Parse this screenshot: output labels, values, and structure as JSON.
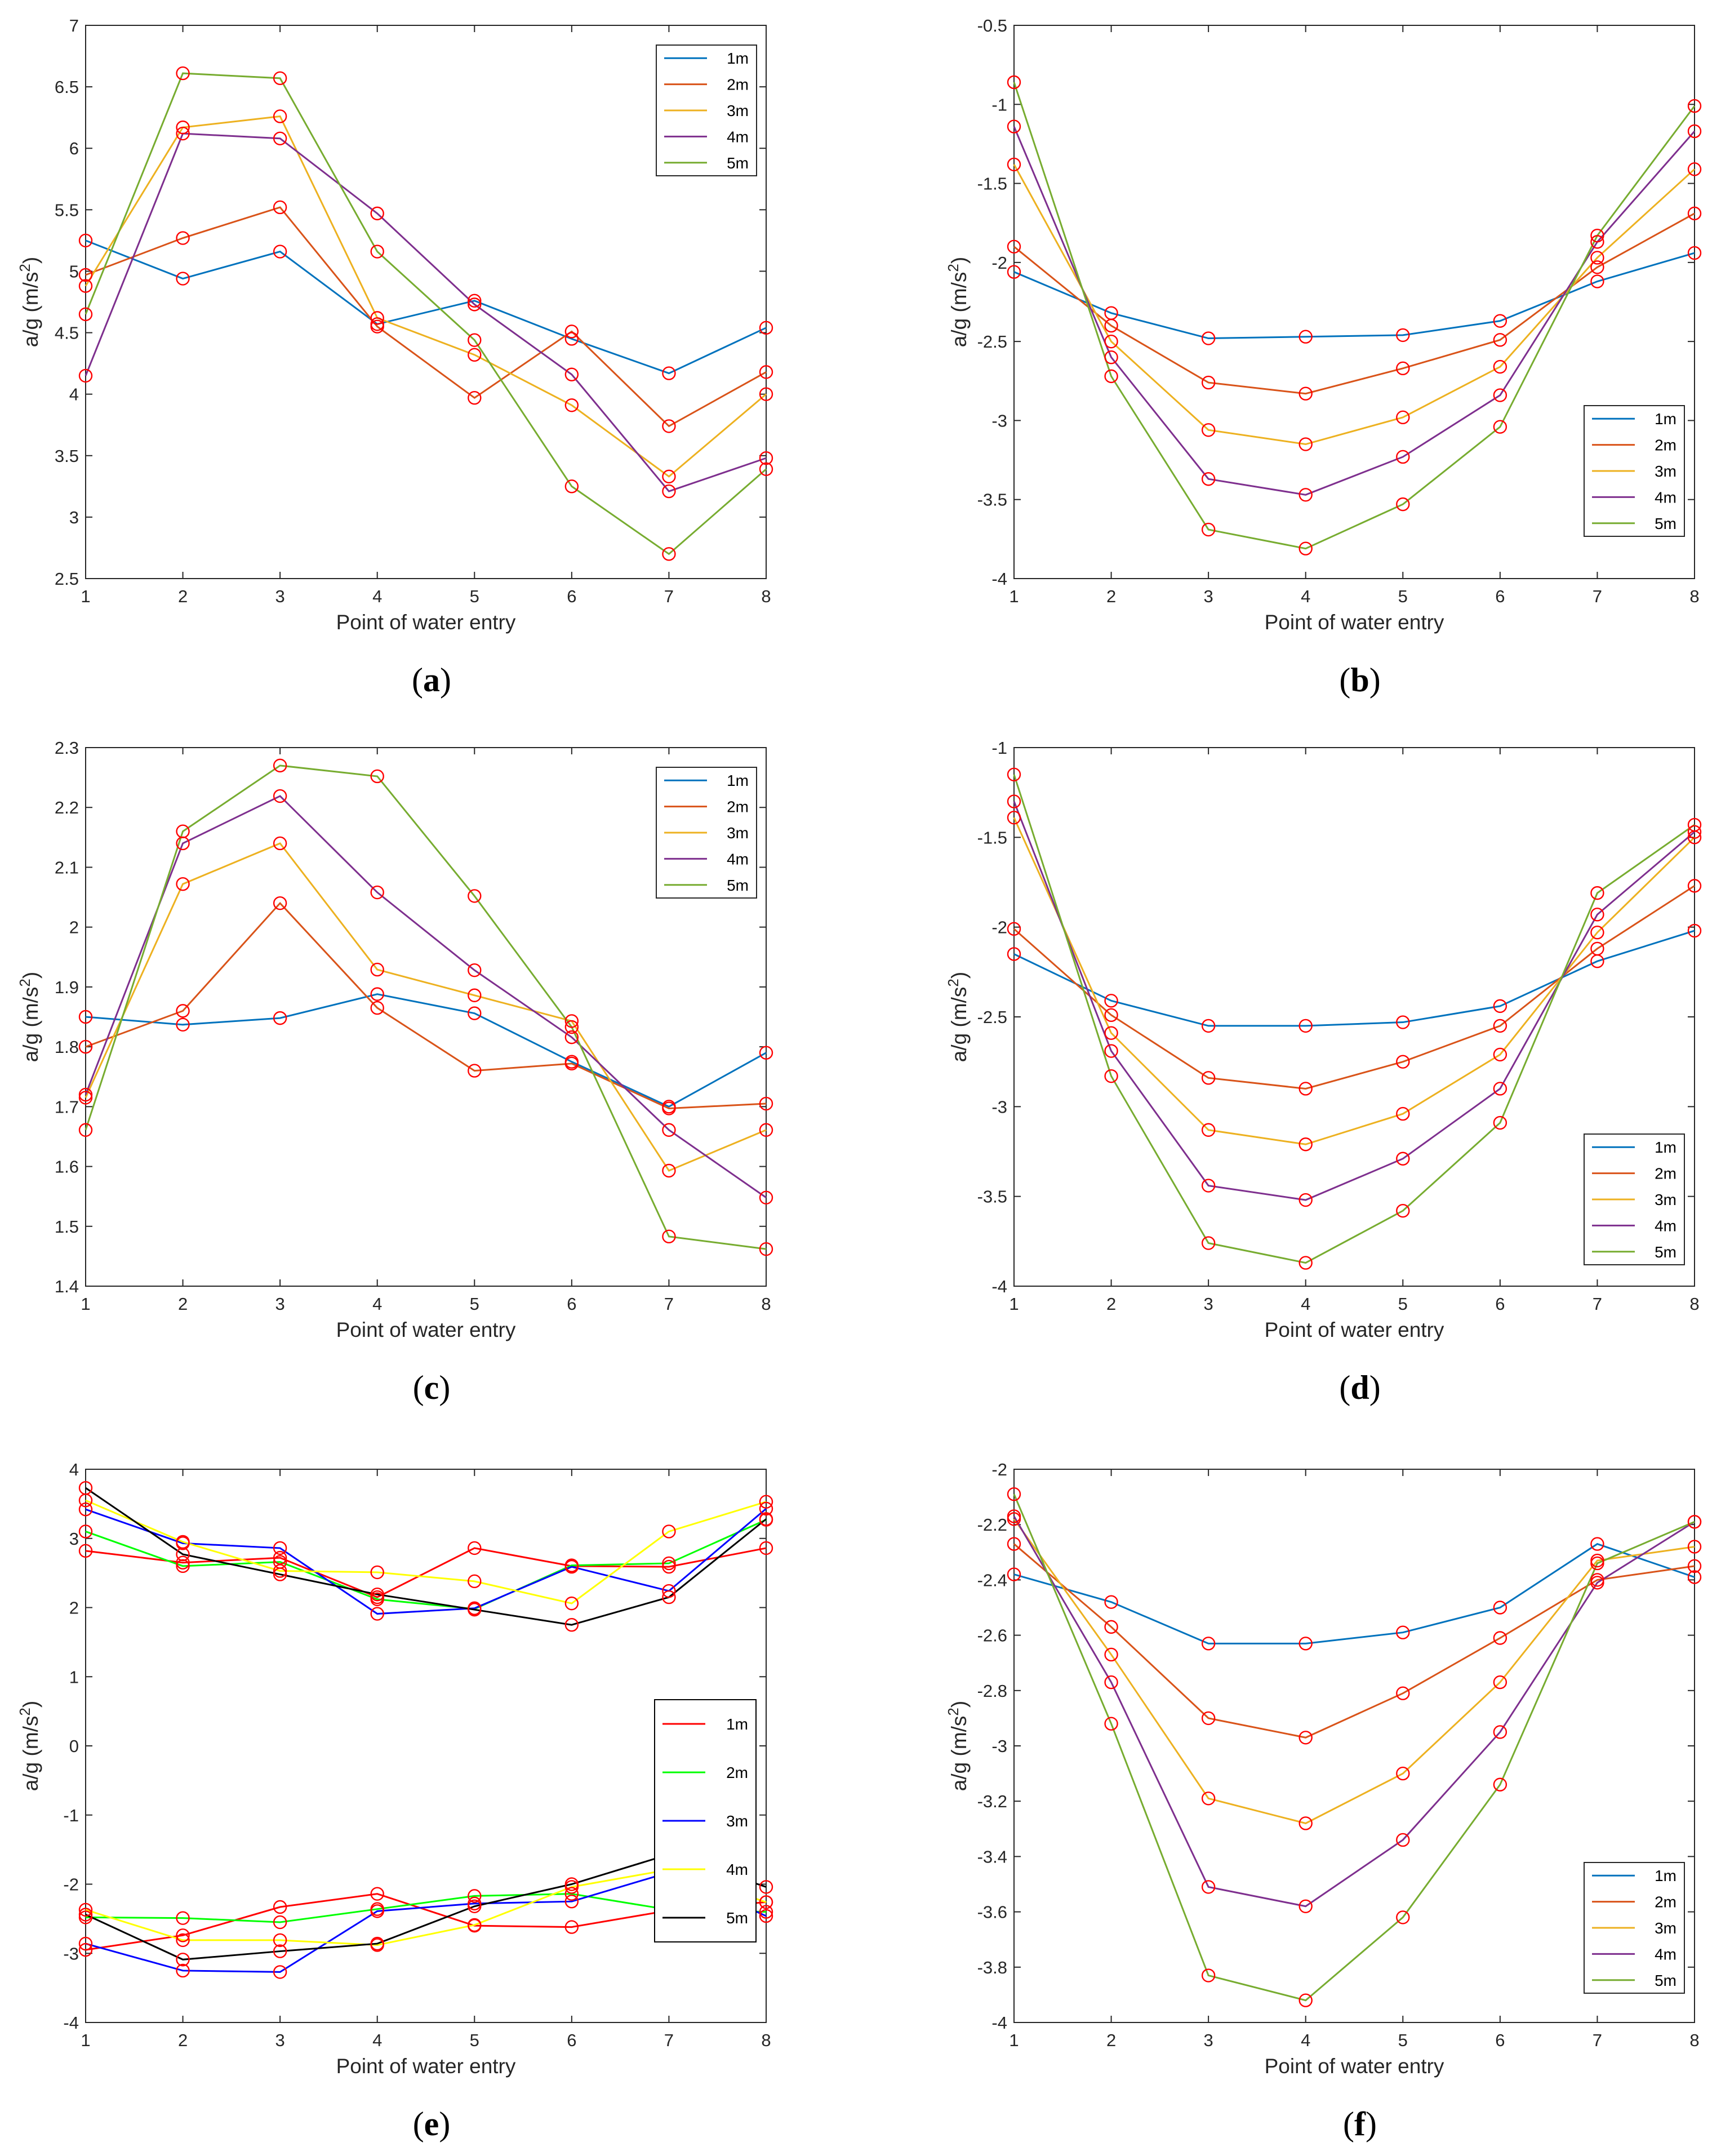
{
  "figure": {
    "panels": [
      "a",
      "b",
      "c",
      "d",
      "e",
      "f"
    ]
  },
  "chart_data": [
    {
      "id": "a",
      "type": "line",
      "caption_letter": "a",
      "xlabel": "Point of water entry",
      "ylabel_main": "a/g (m/s",
      "ylabel_sup": "2",
      "ylabel_close": ")",
      "x": [
        1,
        2,
        3,
        4,
        5,
        6,
        7,
        8
      ],
      "xlim": [
        1,
        8
      ],
      "ylim": [
        2.5,
        7
      ],
      "yticks": [
        2.5,
        3,
        3.5,
        4,
        4.5,
        5,
        5.5,
        6,
        6.5,
        7
      ],
      "legend_position": "top-right",
      "series": [
        {
          "name": "1m",
          "color": "#0072BD",
          "values": [
            5.25,
            4.94,
            5.16,
            4.57,
            4.76,
            4.45,
            4.17,
            4.54
          ]
        },
        {
          "name": "2m",
          "color": "#D95319",
          "values": [
            4.97,
            5.27,
            5.52,
            4.55,
            3.97,
            4.51,
            3.74,
            4.18
          ]
        },
        {
          "name": "3m",
          "color": "#EDB120",
          "values": [
            4.88,
            6.17,
            6.26,
            4.62,
            4.32,
            3.91,
            3.33,
            4.0
          ]
        },
        {
          "name": "4m",
          "color": "#7E2F8E",
          "values": [
            4.15,
            6.12,
            6.08,
            5.47,
            4.73,
            4.16,
            3.21,
            3.48
          ]
        },
        {
          "name": "5m",
          "color": "#77AC30",
          "values": [
            4.65,
            6.61,
            6.57,
            5.16,
            4.44,
            3.25,
            2.7,
            3.39
          ]
        }
      ]
    },
    {
      "id": "b",
      "type": "line",
      "caption_letter": "b",
      "xlabel": "Point of water entry",
      "ylabel_main": "a/g (m/s",
      "ylabel_sup": "2",
      "ylabel_close": ")",
      "x": [
        1,
        2,
        3,
        4,
        5,
        6,
        7,
        8
      ],
      "xlim": [
        1,
        8
      ],
      "ylim": [
        -4,
        -0.5
      ],
      "yticks": [
        -4,
        -3.5,
        -3,
        -2.5,
        -2,
        -1.5,
        -1,
        -0.5
      ],
      "legend_position": "bottom-right",
      "series": [
        {
          "name": "1m",
          "color": "#0072BD",
          "values": [
            -2.06,
            -2.32,
            -2.48,
            -2.47,
            -2.46,
            -2.37,
            -2.12,
            -1.94
          ]
        },
        {
          "name": "2m",
          "color": "#D95319",
          "values": [
            -1.9,
            -2.4,
            -2.76,
            -2.83,
            -2.67,
            -2.49,
            -2.03,
            -1.69
          ]
        },
        {
          "name": "3m",
          "color": "#EDB120",
          "values": [
            -1.38,
            -2.5,
            -3.06,
            -3.15,
            -2.98,
            -2.66,
            -1.97,
            -1.41
          ]
        },
        {
          "name": "4m",
          "color": "#7E2F8E",
          "values": [
            -1.14,
            -2.6,
            -3.37,
            -3.47,
            -3.23,
            -2.84,
            -1.87,
            -1.17
          ]
        },
        {
          "name": "5m",
          "color": "#77AC30",
          "values": [
            -0.86,
            -2.72,
            -3.69,
            -3.81,
            -3.53,
            -3.04,
            -1.83,
            -1.01
          ]
        }
      ]
    },
    {
      "id": "c",
      "type": "line",
      "caption_letter": "c",
      "xlabel": "Point of water entry",
      "ylabel_main": "a/g (m/s",
      "ylabel_sup": "2",
      "ylabel_close": ")",
      "x": [
        1,
        2,
        3,
        4,
        5,
        6,
        7,
        8
      ],
      "xlim": [
        1,
        8
      ],
      "ylim": [
        1.4,
        2.3
      ],
      "yticks": [
        1.4,
        1.5,
        1.6,
        1.7,
        1.8,
        1.9,
        2,
        2.1,
        2.2,
        2.3
      ],
      "legend_position": "top-right",
      "series": [
        {
          "name": "1m",
          "color": "#0072BD",
          "values": [
            1.85,
            1.837,
            1.848,
            1.888,
            1.856,
            1.775,
            1.7,
            1.79
          ]
        },
        {
          "name": "2m",
          "color": "#D95319",
          "values": [
            1.8,
            1.86,
            2.04,
            1.865,
            1.76,
            1.772,
            1.697,
            1.705
          ]
        },
        {
          "name": "3m",
          "color": "#EDB120",
          "values": [
            1.715,
            2.072,
            2.14,
            1.929,
            1.886,
            1.843,
            1.593,
            1.661
          ]
        },
        {
          "name": "4m",
          "color": "#7E2F8E",
          "values": [
            1.72,
            2.14,
            2.219,
            2.058,
            1.928,
            1.816,
            1.661,
            1.548
          ]
        },
        {
          "name": "5m",
          "color": "#77AC30",
          "values": [
            1.661,
            2.16,
            2.27,
            2.252,
            2.052,
            1.833,
            1.483,
            1.462
          ]
        }
      ]
    },
    {
      "id": "d",
      "type": "line",
      "caption_letter": "d",
      "xlabel": "Point of water entry",
      "ylabel_main": "a/g (m/s",
      "ylabel_sup": "2",
      "ylabel_close": ")",
      "x": [
        1,
        2,
        3,
        4,
        5,
        6,
        7,
        8
      ],
      "xlim": [
        1,
        8
      ],
      "ylim": [
        -4,
        -1
      ],
      "yticks": [
        -4,
        -3.5,
        -3,
        -2.5,
        -2,
        -1.5,
        -1
      ],
      "legend_position": "bottom-right",
      "series": [
        {
          "name": "1m",
          "color": "#0072BD",
          "values": [
            -2.15,
            -2.41,
            -2.55,
            -2.55,
            -2.53,
            -2.44,
            -2.19,
            -2.02
          ]
        },
        {
          "name": "2m",
          "color": "#D95319",
          "values": [
            -2.01,
            -2.49,
            -2.84,
            -2.9,
            -2.75,
            -2.55,
            -2.12,
            -1.77
          ]
        },
        {
          "name": "3m",
          "color": "#EDB120",
          "values": [
            -1.39,
            -2.59,
            -3.13,
            -3.21,
            -3.04,
            -2.71,
            -2.03,
            -1.5
          ]
        },
        {
          "name": "4m",
          "color": "#7E2F8E",
          "values": [
            -1.3,
            -2.69,
            -3.44,
            -3.52,
            -3.29,
            -2.9,
            -1.93,
            -1.47
          ]
        },
        {
          "name": "5m",
          "color": "#77AC30",
          "values": [
            -1.15,
            -2.83,
            -3.76,
            -3.87,
            -3.58,
            -3.09,
            -1.81,
            -1.43
          ]
        }
      ]
    },
    {
      "id": "e",
      "type": "line",
      "caption_letter": "e",
      "xlabel": "Point of water entry",
      "ylabel_main": "a/g (m/s",
      "ylabel_sup": "2",
      "ylabel_close": ")",
      "x": [
        1,
        2,
        3,
        4,
        5,
        6,
        7,
        8
      ],
      "xlim": [
        1,
        8
      ],
      "ylim": [
        -4,
        4
      ],
      "yticks": [
        -4,
        -3,
        -2,
        -1,
        0,
        1,
        2,
        3,
        4
      ],
      "legend_position": "middle-right",
      "legend_boxed_dark": true,
      "series": [
        {
          "name": "1m",
          "color": "#FF0000",
          "values": [
            2.82,
            2.65,
            2.72,
            2.15,
            2.86,
            2.6,
            2.59,
            2.86
          ],
          "lower": [
            -2.95,
            -2.74,
            -2.33,
            -2.14,
            -2.6,
            -2.62,
            -2.38,
            -2.26
          ]
        },
        {
          "name": "2m",
          "color": "#00FF00",
          "values": [
            3.1,
            2.6,
            2.66,
            2.12,
            1.98,
            2.61,
            2.64,
            3.27
          ],
          "lower": [
            -2.48,
            -2.49,
            -2.55,
            -2.36,
            -2.17,
            -2.14,
            -2.37,
            -2.4
          ]
        },
        {
          "name": "3m",
          "color": "#0000FF",
          "values": [
            3.42,
            2.93,
            2.86,
            1.91,
            1.99,
            2.59,
            2.24,
            3.43
          ],
          "lower": [
            -2.86,
            -3.25,
            -3.27,
            -2.39,
            -2.28,
            -2.25,
            -1.83,
            -2.46
          ]
        },
        {
          "name": "4m",
          "color": "#FFFF00",
          "values": [
            3.55,
            2.95,
            2.53,
            2.51,
            2.38,
            2.06,
            3.1,
            3.53
          ],
          "lower": [
            -2.37,
            -2.81,
            -2.81,
            -2.88,
            -2.59,
            -2.04,
            -1.79,
            -2.26
          ]
        },
        {
          "name": "5m",
          "color": "#000000",
          "values": [
            3.73,
            2.77,
            2.48,
            2.19,
            1.97,
            1.75,
            2.15,
            3.28
          ],
          "lower": [
            -2.44,
            -3.09,
            -2.97,
            -2.86,
            -2.32,
            -2.0,
            -1.57,
            -2.04
          ]
        }
      ]
    },
    {
      "id": "f",
      "type": "line",
      "caption_letter": "f",
      "xlabel": "Point of water entry",
      "ylabel_main": "a/g (m/s",
      "ylabel_sup": "2",
      "ylabel_close": ")",
      "x": [
        1,
        2,
        3,
        4,
        5,
        6,
        7,
        8
      ],
      "xlim": [
        1,
        8
      ],
      "ylim": [
        -4,
        -2
      ],
      "yticks": [
        -4,
        -3.8,
        -3.6,
        -3.4,
        -3.2,
        -3,
        -2.8,
        -2.6,
        -2.4,
        -2.2,
        -2
      ],
      "legend_position": "bottom-right",
      "series": [
        {
          "name": "1m",
          "color": "#0072BD",
          "values": [
            -2.38,
            -2.48,
            -2.63,
            -2.63,
            -2.59,
            -2.5,
            -2.27,
            -2.39
          ]
        },
        {
          "name": "2m",
          "color": "#D95319",
          "values": [
            -2.27,
            -2.57,
            -2.9,
            -2.97,
            -2.81,
            -2.61,
            -2.4,
            -2.35
          ]
        },
        {
          "name": "3m",
          "color": "#EDB120",
          "values": [
            -2.18,
            -2.67,
            -3.19,
            -3.28,
            -3.1,
            -2.77,
            -2.33,
            -2.28
          ]
        },
        {
          "name": "4m",
          "color": "#7E2F8E",
          "values": [
            -2.17,
            -2.77,
            -3.51,
            -3.58,
            -3.34,
            -2.95,
            -2.41,
            -2.19
          ]
        },
        {
          "name": "5m",
          "color": "#77AC30",
          "values": [
            -2.09,
            -2.92,
            -3.83,
            -3.92,
            -3.62,
            -3.14,
            -2.34,
            -2.19
          ]
        }
      ]
    }
  ]
}
